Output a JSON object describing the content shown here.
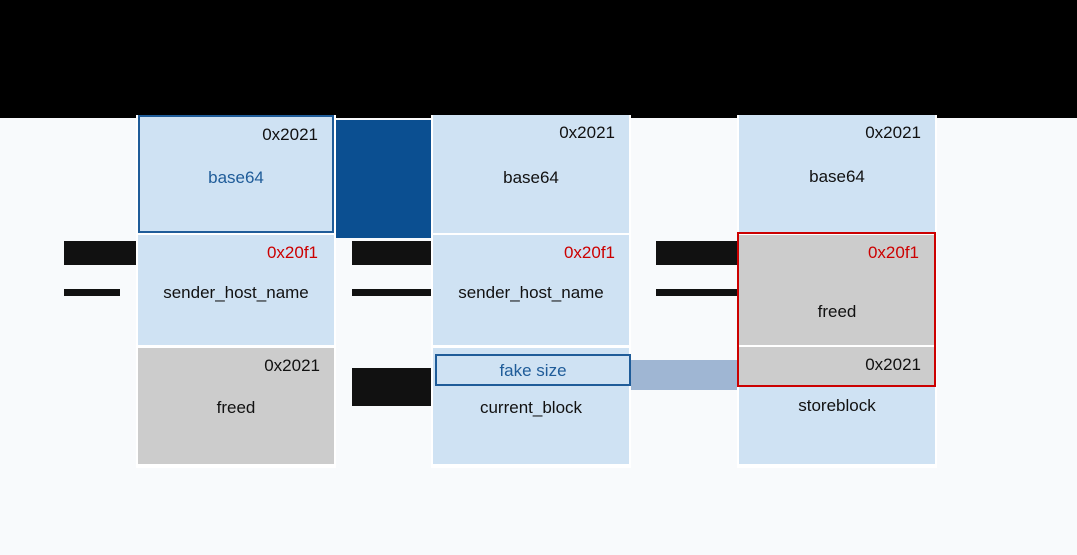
{
  "colors": {
    "chunk_blue": "#cfe2f3",
    "chunk_gray": "#cccccc",
    "highlight_red": "#cc0000",
    "highlight_navy": "#1f5c99",
    "connector_dark": "#0b4f91",
    "connector_light": "#9fb6d3"
  },
  "col1": {
    "c1": {
      "size": "0x2021",
      "name": "base64"
    },
    "c2": {
      "size": "0x20f1",
      "name": "sender_host_name"
    },
    "c3": {
      "size": "0x2021",
      "name": "freed"
    }
  },
  "col2": {
    "c1": {
      "size": "0x2021",
      "name": "base64"
    },
    "c2": {
      "size": "0x20f1",
      "name": "sender_host_name"
    },
    "c3": {
      "fake": "fake size",
      "name": "current_block"
    }
  },
  "col3": {
    "c1": {
      "size": "0x2021",
      "name": "base64"
    },
    "c2": {
      "size": "0x20f1",
      "name": "freed"
    },
    "c3": {
      "size": "0x2021",
      "name": "storeblock"
    }
  }
}
